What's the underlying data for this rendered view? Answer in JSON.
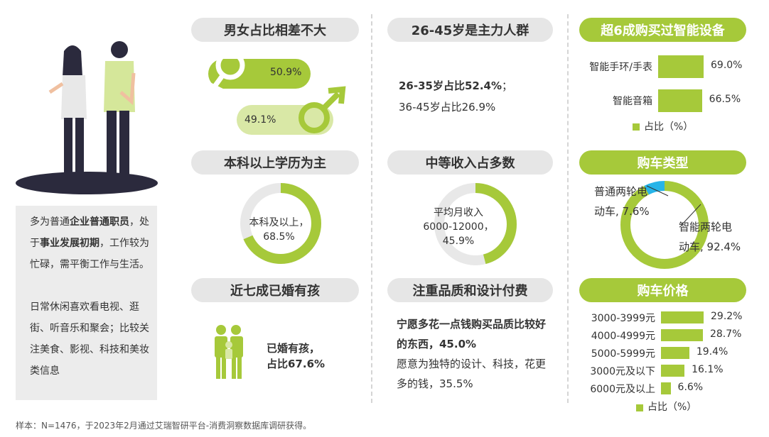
{
  "colors": {
    "accent": "#a6c93a",
    "accent_light": "#d9e8a6",
    "blue": "#27b4e8",
    "pill_gray": "#e6e6e6"
  },
  "description": {
    "p1_a": "多为普通",
    "p1_b": "企业普通职员",
    "p1_c": "，处于",
    "p1_d": "事业发展初期",
    "p1_e": "，工作较为忙碌，需平衡工作与生活。",
    "p2": "日常休闲喜欢看电视、逛街、听音乐和聚会；比较关注美食、影视、科技和美妆类信息"
  },
  "footnote": "样本：N=1476，于2023年2月通过艾瑞智研平台-消费洞察数据库调研获得。",
  "gender": {
    "title": "男女占比相差不大",
    "female": "50.9%",
    "male": "49.1%"
  },
  "age": {
    "title": "26-45岁是主力人群",
    "line1_bold": "26-35岁占比52.4%",
    "line1_suffix": "；",
    "line2": "36-45岁占比26.9%"
  },
  "education": {
    "title": "本科以上学历为主",
    "label": "本科及以上，",
    "value": "68.5%"
  },
  "income": {
    "title": "中等收入占多数",
    "line1": "平均月收入",
    "line2": "6000-12000，",
    "value": "45.9%"
  },
  "marriage": {
    "title": "近七成已婚有孩",
    "line1": "已婚有孩，",
    "line2": "占比67.6%"
  },
  "quality": {
    "title": "注重品质和设计付费",
    "line1_bold": "宁愿多花一点钱购买品质比较好的东西，45.0%",
    "line2": "愿意为独特的设计、科技，花更多的钱，35.5%"
  },
  "smart": {
    "title": "超6成购买过智能设备"
  },
  "car_type": {
    "title": "购车类型",
    "label_a1": "普通两轮电",
    "label_a2": "动车, 7.6%",
    "label_b1": "智能两轮电",
    "label_b2": "动车, 92.4%"
  },
  "car_price": {
    "title": "购车价格"
  },
  "chart_data": [
    {
      "type": "pie",
      "categories": [
        "男",
        "女"
      ],
      "values": [
        49.1,
        50.9
      ]
    },
    {
      "type": "pie",
      "categories": [
        "本科及以上"
      ],
      "values": [
        68.5
      ]
    },
    {
      "type": "pie",
      "categories": [
        "平均月收入6000-12000"
      ],
      "values": [
        45.9
      ]
    },
    {
      "type": "bar",
      "categories": [
        "智能手环/手表",
        "智能音箱"
      ],
      "values": [
        69.0,
        66.5
      ],
      "value_labels": [
        "69.0%",
        "66.5%"
      ],
      "legend": "占比（%）"
    },
    {
      "type": "pie",
      "categories": [
        "普通两轮电动车",
        "智能两轮电动车"
      ],
      "values": [
        7.6,
        92.4
      ]
    },
    {
      "type": "bar",
      "categories": [
        "3000-3999元",
        "4000-4999元",
        "5000-5999元",
        "3000元及以下",
        "6000元及以上"
      ],
      "values": [
        29.2,
        28.7,
        19.4,
        16.1,
        6.6
      ],
      "value_labels": [
        "29.2%",
        "28.7%",
        "19.4%",
        "16.1%",
        "6.6%"
      ],
      "legend": "占比（%）"
    }
  ]
}
